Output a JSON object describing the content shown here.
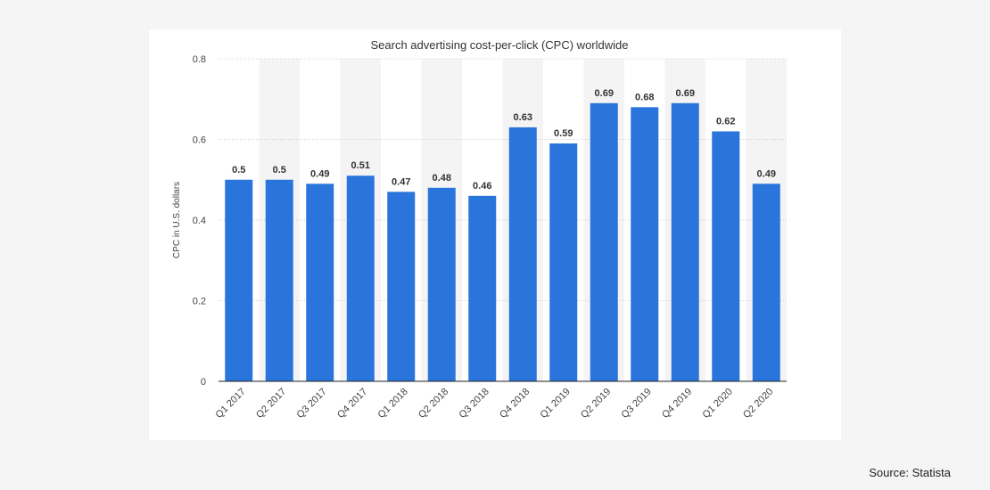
{
  "chart_data": {
    "type": "bar",
    "title": "Search advertising cost-per-click (CPC) worldwide",
    "xlabel": "",
    "ylabel": "CPC in U.S. dollars",
    "ylim": [
      0,
      0.8
    ],
    "yticks": [
      "0",
      "0.2",
      "0.4",
      "0.6",
      "0.8"
    ],
    "grid": true,
    "legend": "none",
    "bar_color": "#2a75db",
    "band_color": "#f4f4f4",
    "categories": [
      "Q1 2017",
      "Q2 2017",
      "Q3 2017",
      "Q4 2017",
      "Q1 2018",
      "Q2 2018",
      "Q3 2018",
      "Q4 2018",
      "Q1 2019",
      "Q2 2019",
      "Q3 2019",
      "Q4 2019",
      "Q1 2020",
      "Q2 2020"
    ],
    "values": [
      0.5,
      0.5,
      0.49,
      0.51,
      0.47,
      0.48,
      0.46,
      0.63,
      0.59,
      0.69,
      0.68,
      0.69,
      0.62,
      0.49
    ],
    "value_labels": [
      "0.5",
      "0.5",
      "0.49",
      "0.51",
      "0.47",
      "0.48",
      "0.46",
      "0.63",
      "0.59",
      "0.69",
      "0.68",
      "0.69",
      "0.62",
      "0.49"
    ]
  },
  "source": "Source: Statista"
}
